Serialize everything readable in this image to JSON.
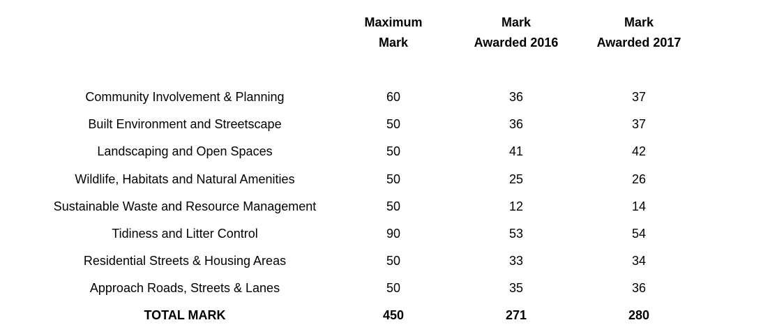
{
  "header": {
    "max": [
      "Maximum",
      "Mark"
    ],
    "y2016": [
      "Mark",
      "Awarded 2016"
    ],
    "y2017": [
      "Mark",
      "Awarded 2017"
    ]
  },
  "rows": [
    {
      "label": "Community Involvement & Planning",
      "max": "60",
      "y2016": "36",
      "y2017": "37"
    },
    {
      "label": "Built Environment and Streetscape",
      "max": "50",
      "y2016": "36",
      "y2017": "37"
    },
    {
      "label": "Landscaping and Open Spaces",
      "max": "50",
      "y2016": "41",
      "y2017": "42"
    },
    {
      "label": "Wildlife, Habitats and Natural Amenities",
      "max": "50",
      "y2016": "25",
      "y2017": "26"
    },
    {
      "label": "Sustainable Waste and Resource Management",
      "max": "50",
      "y2016": "12",
      "y2017": "14"
    },
    {
      "label": "Tidiness and Litter Control",
      "max": "90",
      "y2016": "53",
      "y2017": "54"
    },
    {
      "label": "Residential Streets & Housing Areas",
      "max": "50",
      "y2016": "33",
      "y2017": "34"
    },
    {
      "label": "Approach Roads, Streets & Lanes",
      "max": "50",
      "y2016": "35",
      "y2017": "36"
    }
  ],
  "total": {
    "label": "TOTAL MARK",
    "max": "450",
    "y2016": "271",
    "y2017": "280"
  }
}
